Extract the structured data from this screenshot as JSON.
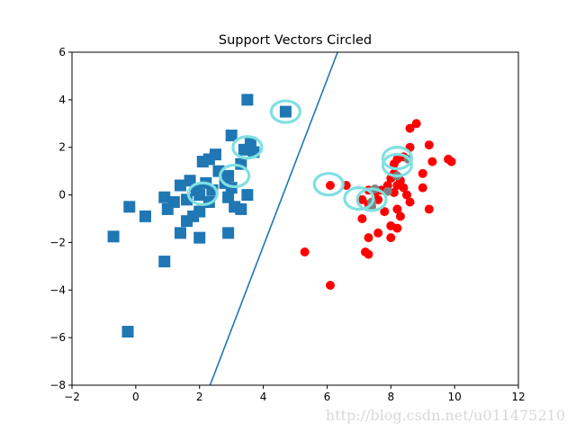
{
  "chart_data": {
    "type": "scatter",
    "title": "Support Vectors Circled",
    "xlabel": "",
    "ylabel": "",
    "xlim": [
      -2,
      12
    ],
    "ylim": [
      -8,
      6
    ],
    "xticks": [
      "−2",
      "0",
      "2",
      "4",
      "6",
      "8",
      "10",
      "12"
    ],
    "yticks": [
      "−8",
      "−6",
      "−4",
      "−2",
      "0",
      "2",
      "4",
      "6"
    ],
    "grid": false,
    "legend": "none",
    "colors": {
      "class_a": "#1f77b4",
      "class_b": "#ff0000",
      "support_vector_ring": "#7fe0e0",
      "boundary": "#1f77b4"
    },
    "boundary_line": {
      "x": [
        2.33,
        6.33
      ],
      "y": [
        -8,
        6
      ]
    },
    "series": [
      {
        "marker": "square",
        "color": "#1f77b4",
        "points": [
          [
            3.5,
            4.0
          ],
          [
            4.7,
            3.5
          ],
          [
            3.0,
            2.5
          ],
          [
            3.6,
            2.2
          ],
          [
            3.4,
            1.9
          ],
          [
            3.7,
            1.8
          ],
          [
            2.5,
            1.7
          ],
          [
            2.3,
            1.5
          ],
          [
            2.1,
            1.4
          ],
          [
            3.3,
            1.3
          ],
          [
            2.6,
            1.0
          ],
          [
            2.9,
            0.8
          ],
          [
            1.7,
            0.6
          ],
          [
            2.2,
            0.5
          ],
          [
            2.8,
            0.5
          ],
          [
            1.4,
            0.4
          ],
          [
            3.0,
            0.3
          ],
          [
            1.9,
            0.2
          ],
          [
            2.4,
            0.2
          ],
          [
            3.5,
            0.0
          ],
          [
            2.0,
            0.0
          ],
          [
            2.9,
            -0.1
          ],
          [
            0.9,
            -0.1
          ],
          [
            1.6,
            -0.2
          ],
          [
            2.3,
            -0.3
          ],
          [
            1.2,
            -0.3
          ],
          [
            3.1,
            -0.5
          ],
          [
            3.3,
            -0.6
          ],
          [
            1.0,
            -0.6
          ],
          [
            -0.2,
            -0.5
          ],
          [
            2.0,
            -0.7
          ],
          [
            1.8,
            -0.9
          ],
          [
            0.3,
            -0.9
          ],
          [
            1.6,
            -1.1
          ],
          [
            1.4,
            -1.6
          ],
          [
            2.9,
            -1.6
          ],
          [
            2.0,
            -1.8
          ],
          [
            -0.7,
            -1.75
          ],
          [
            0.9,
            -2.8
          ],
          [
            -0.25,
            -5.75
          ]
        ]
      },
      {
        "marker": "circle",
        "color": "#ff0000",
        "points": [
          [
            8.8,
            3.0
          ],
          [
            8.6,
            2.8
          ],
          [
            8.6,
            2.0
          ],
          [
            9.2,
            2.1
          ],
          [
            8.4,
            1.6
          ],
          [
            8.2,
            1.5
          ],
          [
            8.1,
            1.3
          ],
          [
            9.3,
            1.4
          ],
          [
            9.8,
            1.5
          ],
          [
            9.9,
            1.4
          ],
          [
            9.0,
            0.9
          ],
          [
            8.1,
            0.9
          ],
          [
            8.0,
            0.7
          ],
          [
            8.3,
            0.6
          ],
          [
            8.2,
            0.4
          ],
          [
            7.9,
            0.4
          ],
          [
            8.4,
            0.3
          ],
          [
            9.0,
            0.3
          ],
          [
            6.6,
            0.4
          ],
          [
            6.1,
            0.4
          ],
          [
            7.7,
            0.2
          ],
          [
            7.3,
            0.2
          ],
          [
            8.1,
            0.1
          ],
          [
            7.5,
            0.1
          ],
          [
            8.5,
            0.0
          ],
          [
            7.1,
            -0.2
          ],
          [
            7.6,
            -0.2
          ],
          [
            8.6,
            -0.3
          ],
          [
            7.3,
            -0.4
          ],
          [
            8.2,
            -0.6
          ],
          [
            9.2,
            -0.6
          ],
          [
            7.8,
            -0.7
          ],
          [
            8.3,
            -0.9
          ],
          [
            7.1,
            -1.0
          ],
          [
            8.0,
            -1.3
          ],
          [
            8.2,
            -1.4
          ],
          [
            7.6,
            -1.6
          ],
          [
            8.0,
            -1.8
          ],
          [
            7.3,
            -1.8
          ],
          [
            7.2,
            -2.4
          ],
          [
            7.3,
            -2.5
          ],
          [
            5.3,
            -2.4
          ],
          [
            6.1,
            -3.8
          ]
        ]
      },
      {
        "marker": "circle",
        "color": "#808080",
        "points": [
          [
            8.55,
            1.5
          ],
          [
            8.2,
            0.8
          ],
          [
            7.5,
            0.25
          ],
          [
            7.9,
            0.15
          ],
          [
            7.4,
            -0.3
          ],
          [
            7.4,
            -0.5
          ]
        ]
      }
    ],
    "support_vectors": [
      [
        4.7,
        3.5
      ],
      [
        3.5,
        2.0
      ],
      [
        3.1,
        0.8
      ],
      [
        2.1,
        0.05
      ],
      [
        6.05,
        0.45
      ],
      [
        7.0,
        -0.15
      ],
      [
        7.4,
        -0.2
      ],
      [
        8.2,
        1.55
      ],
      [
        8.2,
        1.25
      ]
    ],
    "watermark": "http://blog.csdn.net/u011475210"
  }
}
